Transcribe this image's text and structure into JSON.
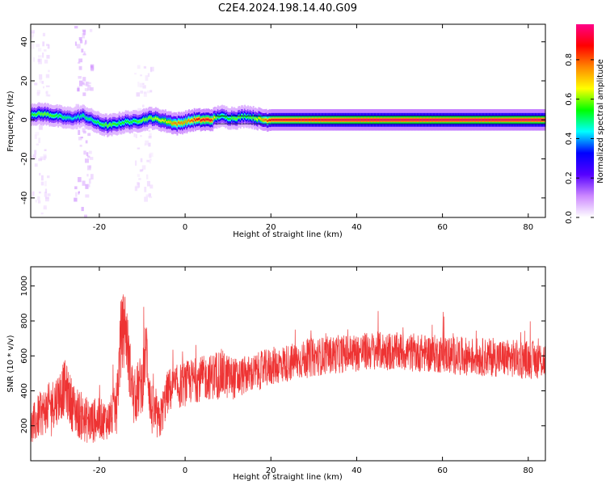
{
  "title": "C2E4.2024.198.14.40.G09",
  "chart_data": [
    {
      "type": "heatmap",
      "title": "C2E4.2024.198.14.40.G09",
      "xlabel": "Height of straight line (km)",
      "ylabel": "Frequency (Hz)",
      "xlim": [
        -36,
        84
      ],
      "ylim": [
        -50,
        49
      ],
      "x_ticks": [
        -20,
        0,
        20,
        40,
        60,
        80
      ],
      "y_ticks": [
        -40,
        -20,
        0,
        20,
        40
      ],
      "grid": false,
      "colorbar": {
        "label": "Normalized spectral amplitude",
        "range": [
          0,
          0.98
        ],
        "ticks": [
          0.0,
          0.2,
          0.4,
          0.6,
          0.8
        ],
        "colormap": [
          "#ffffff",
          "#cc88ff",
          "#5500ff",
          "#0000ff",
          "#00ffff",
          "#00ff00",
          "#ffff00",
          "#ff8800",
          "#ff0000",
          "#ff0088"
        ]
      },
      "ridge": {
        "x": [
          -36,
          -33,
          -30,
          -28,
          -26,
          -24,
          -22,
          -20,
          -18,
          -16,
          -14,
          -12,
          -10,
          -8,
          -6,
          -4,
          -2,
          0,
          2,
          4,
          6,
          7,
          8,
          10,
          12,
          14,
          16,
          18,
          20,
          40,
          60,
          84
        ],
        "frequency": [
          3,
          3,
          2,
          1,
          1,
          2,
          0,
          -2,
          -3,
          -2,
          -1,
          -1,
          0,
          1,
          0,
          -1,
          -2,
          -1,
          0,
          0,
          0,
          1,
          2,
          1,
          1,
          2,
          1,
          0,
          0,
          0,
          0,
          0
        ],
        "peak_amplitude": [
          0.55,
          0.6,
          0.55,
          0.5,
          0.45,
          0.5,
          0.5,
          0.55,
          0.6,
          0.55,
          0.55,
          0.55,
          0.6,
          0.6,
          0.65,
          0.7,
          0.8,
          0.75,
          0.85,
          0.9,
          0.9,
          0.6,
          0.55,
          0.55,
          0.6,
          0.55,
          0.6,
          0.75,
          0.9,
          0.95,
          0.95,
          0.95
        ]
      },
      "noise_bands": [
        {
          "x": -24,
          "frequency_range": [
            -50,
            49
          ],
          "amplitude": 0.1
        },
        {
          "x": -34,
          "frequency_range": [
            -50,
            49
          ],
          "amplitude": 0.05
        },
        {
          "x": -10,
          "frequency_range": [
            -40,
            30
          ],
          "amplitude": 0.05
        }
      ]
    },
    {
      "type": "line",
      "xlabel": "Height of straight line (km)",
      "ylabel": "SNR (10 * v/v)",
      "xlim": [
        -36,
        84
      ],
      "ylim": [
        0,
        1110
      ],
      "x_ticks": [
        -20,
        0,
        20,
        40,
        60,
        80
      ],
      "y_ticks": [
        200,
        400,
        600,
        800,
        1000
      ],
      "grid": false,
      "color": "#ee3333",
      "series": [
        {
          "x": [
            -36,
            -34,
            -32,
            -30,
            -28,
            -26,
            -24,
            -22,
            -20,
            -18,
            -16,
            -15,
            -14,
            -13,
            -12,
            -10,
            -9,
            -8,
            -6,
            -4,
            -2,
            0,
            2,
            4,
            6,
            8,
            10,
            12,
            14,
            16,
            18,
            20,
            24,
            28,
            32,
            36,
            40,
            44,
            48,
            52,
            56,
            60,
            64,
            68,
            72,
            76,
            80,
            84
          ],
          "values": [
            180,
            260,
            300,
            350,
            420,
            300,
            250,
            220,
            240,
            230,
            300,
            700,
            800,
            550,
            350,
            450,
            650,
            300,
            220,
            400,
            420,
            440,
            460,
            470,
            480,
            500,
            480,
            470,
            490,
            500,
            520,
            540,
            560,
            580,
            600,
            610,
            620,
            630,
            625,
            620,
            615,
            610,
            600,
            595,
            590,
            585,
            580,
            575
          ],
          "noise": [
            120,
            130,
            140,
            150,
            160,
            150,
            140,
            130,
            120,
            110,
            150,
            220,
            200,
            180,
            160,
            180,
            200,
            160,
            120,
            130,
            130,
            130,
            130,
            130,
            130,
            150,
            130,
            120,
            110,
            110,
            110,
            110,
            110,
            110,
            110,
            110,
            110,
            110,
            110,
            110,
            110,
            110,
            110,
            110,
            110,
            110,
            110,
            110
          ]
        }
      ]
    }
  ]
}
